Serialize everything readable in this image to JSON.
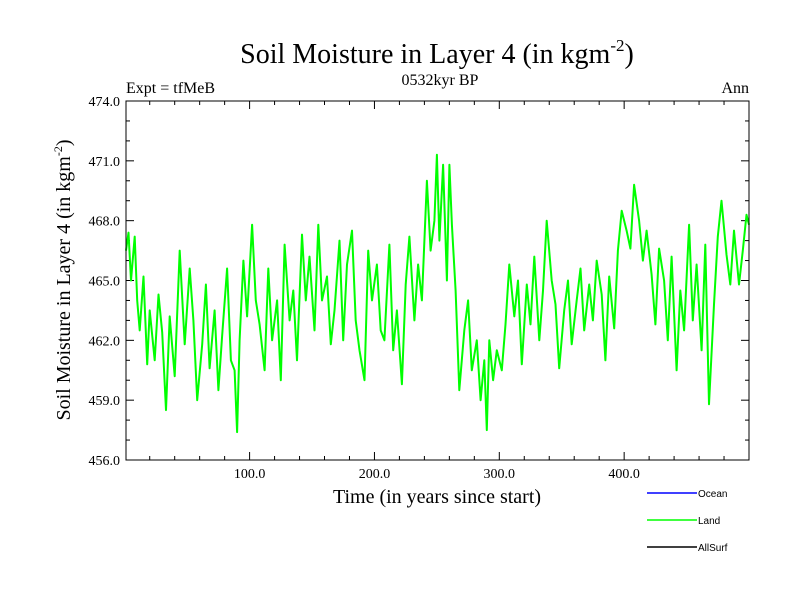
{
  "chart_data": {
    "type": "line",
    "title": "Soil Moisture in Layer 4 (in kgm",
    "title_superscript": "-2",
    "title_close": ")",
    "subtitle_left": "Expt = tfMeB",
    "subtitle_center": "0532kyr BP",
    "subtitle_right": "Ann",
    "ylabel": "Soil Moisture in Layer 4 (in kgm",
    "ylabel_superscript": "-2",
    "ylabel_close": ")",
    "xlabel": "Time (in years since start)",
    "xlim": [
      1,
      500
    ],
    "ylim": [
      456.0,
      474.0
    ],
    "xticks": [
      100,
      200,
      300,
      400
    ],
    "xtick_labels": [
      "100.0",
      "200.0",
      "300.0",
      "400.0"
    ],
    "yticks": [
      456,
      459,
      462,
      465,
      468,
      471,
      474
    ],
    "ytick_labels": [
      "456.0",
      "459.0",
      "462.0",
      "465.0",
      "468.0",
      "471.0",
      "474.0"
    ],
    "grid": false,
    "legend_placement": "bottom-right, below plot",
    "series": [
      {
        "name": "Ocean",
        "color": "#0000ff",
        "x": [],
        "y": []
      },
      {
        "name": "Land",
        "color": "#00ff00",
        "x": [
          1,
          3,
          5,
          8,
          10,
          12,
          15,
          18,
          20,
          24,
          27,
          30,
          33,
          36,
          40,
          44,
          48,
          52,
          55,
          58,
          62,
          65,
          68,
          72,
          75,
          78,
          82,
          85,
          88,
          90,
          92,
          95,
          98,
          102,
          105,
          108,
          112,
          115,
          118,
          122,
          125,
          128,
          132,
          135,
          138,
          142,
          145,
          148,
          152,
          155,
          158,
          162,
          165,
          168,
          172,
          175,
          178,
          182,
          185,
          188,
          192,
          195,
          198,
          202,
          205,
          208,
          212,
          215,
          218,
          222,
          225,
          228,
          232,
          235,
          238,
          242,
          245,
          248,
          250,
          252,
          255,
          258,
          260,
          262,
          265,
          268,
          272,
          275,
          278,
          282,
          285,
          288,
          290,
          292,
          295,
          298,
          302,
          305,
          308,
          312,
          315,
          318,
          322,
          325,
          328,
          332,
          335,
          338,
          342,
          345,
          348,
          352,
          355,
          358,
          362,
          365,
          368,
          372,
          375,
          378,
          382,
          385,
          388,
          392,
          395,
          398,
          402,
          405,
          408,
          412,
          415,
          418,
          422,
          425,
          428,
          432,
          435,
          438,
          442,
          445,
          448,
          452,
          455,
          458,
          462,
          465,
          468,
          472,
          475,
          478,
          482,
          485,
          488,
          492,
          495,
          498,
          500
        ],
        "y": [
          466.5,
          467.4,
          465.0,
          467.2,
          464.0,
          462.5,
          465.2,
          460.8,
          463.5,
          461.0,
          464.3,
          462.4,
          458.5,
          463.2,
          460.2,
          466.5,
          461.8,
          465.6,
          463.0,
          459.0,
          461.8,
          464.8,
          460.6,
          463.5,
          459.5,
          462.2,
          465.6,
          461.0,
          460.5,
          457.4,
          462.0,
          466.0,
          463.2,
          467.8,
          464.0,
          462.8,
          460.5,
          465.6,
          462.0,
          464.0,
          460.0,
          466.8,
          463.0,
          464.5,
          461.0,
          467.3,
          464.0,
          466.2,
          462.5,
          467.8,
          464.0,
          465.2,
          461.8,
          463.5,
          467.0,
          462.0,
          465.8,
          467.5,
          463.0,
          461.5,
          460.0,
          466.5,
          464.0,
          465.8,
          462.5,
          462.0,
          466.8,
          461.5,
          463.5,
          459.8,
          464.8,
          467.2,
          463.0,
          465.8,
          464.0,
          470.0,
          466.5,
          468.0,
          471.3,
          467.0,
          470.8,
          465.0,
          470.8,
          467.8,
          464.5,
          459.5,
          462.5,
          464.0,
          460.5,
          462.0,
          459.0,
          461.0,
          457.5,
          462.0,
          460.0,
          461.5,
          460.5,
          462.8,
          465.8,
          463.2,
          465.0,
          460.8,
          464.8,
          462.8,
          466.2,
          462.0,
          464.5,
          468.0,
          465.0,
          463.8,
          460.6,
          463.5,
          465.0,
          461.8,
          464.0,
          465.6,
          462.5,
          464.8,
          463.0,
          466.0,
          464.3,
          461.0,
          465.2,
          462.6,
          466.5,
          468.5,
          467.5,
          466.6,
          469.8,
          468.0,
          466.0,
          467.5,
          465.3,
          462.8,
          466.6,
          465.0,
          462.0,
          466.2,
          460.5,
          464.5,
          462.5,
          467.8,
          463.0,
          465.8,
          461.5,
          466.8,
          458.8,
          463.8,
          467.2,
          469.0,
          466.3,
          464.8,
          467.5,
          464.8,
          466.5,
          468.3,
          467.8
        ]
      },
      {
        "name": "AllSurf",
        "color": "#000000",
        "x": [],
        "y": []
      }
    ]
  }
}
